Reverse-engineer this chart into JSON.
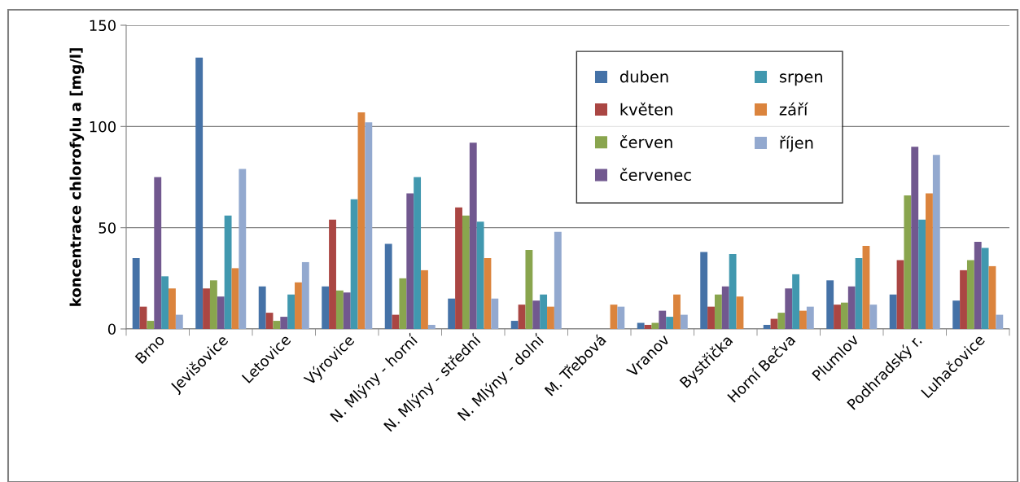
{
  "chart_data": {
    "type": "bar",
    "ylabel": "koncentrace chlorofylu a [mg/l]",
    "categories": [
      "Brno",
      "Jevišovice",
      "Letovice",
      "Výrovice",
      "N. Mlýny - horní",
      "N. Mlýny - střední",
      "N. Mlýny - dolní",
      "M. Třebová",
      "Vranov",
      "Bystřička",
      "Horní Bečva",
      "Plumlov",
      "Podhradský r.",
      "Luhačovice"
    ],
    "series": [
      {
        "name": "duben",
        "color": "#4572a7",
        "values": [
          35,
          134,
          21,
          21,
          42,
          15,
          4,
          null,
          3,
          38,
          2,
          24,
          17,
          14
        ]
      },
      {
        "name": "květen",
        "color": "#aa4643",
        "values": [
          11,
          20,
          8,
          54,
          7,
          60,
          12,
          null,
          2,
          11,
          5,
          12,
          34,
          29
        ]
      },
      {
        "name": "červen",
        "color": "#89a54e",
        "values": [
          4,
          24,
          4,
          19,
          25,
          56,
          39,
          null,
          3,
          17,
          8,
          13,
          66,
          34
        ]
      },
      {
        "name": "červenec",
        "color": "#71588f",
        "values": [
          75,
          16,
          6,
          18,
          67,
          92,
          14,
          null,
          9,
          21,
          20,
          21,
          90,
          43
        ]
      },
      {
        "name": "srpen",
        "color": "#4198af",
        "values": [
          26,
          56,
          17,
          64,
          75,
          53,
          17,
          null,
          6,
          37,
          27,
          35,
          54,
          40
        ]
      },
      {
        "name": "září",
        "color": "#db843d",
        "values": [
          20,
          30,
          23,
          107,
          29,
          35,
          11,
          12,
          17,
          16,
          9,
          41,
          67,
          31
        ]
      },
      {
        "name": "říjen",
        "color": "#93a9cf",
        "values": [
          7,
          79,
          33,
          102,
          2,
          15,
          48,
          11,
          7,
          null,
          11,
          12,
          86,
          7
        ]
      }
    ],
    "ylim": [
      0,
      150
    ],
    "yticks": [
      0,
      50,
      100,
      150
    ],
    "grid": "y",
    "legend": "top right"
  }
}
